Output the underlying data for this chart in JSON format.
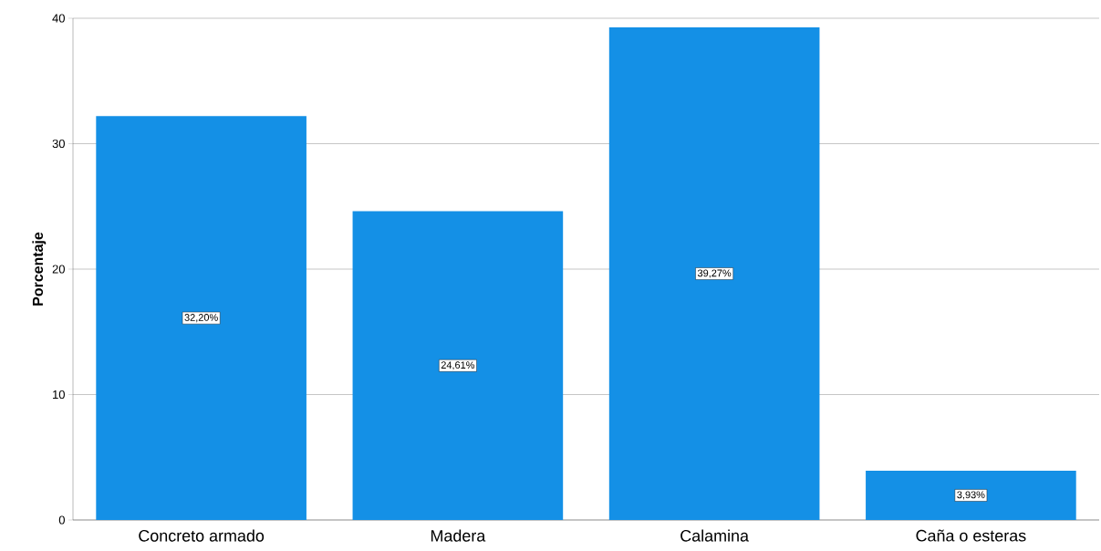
{
  "chart_data": {
    "type": "bar",
    "ylabel": "Porcentaje",
    "categories": [
      "Concreto armado",
      "Madera",
      "Calamina",
      "Caña o esteras"
    ],
    "values": [
      32.2,
      24.61,
      39.27,
      3.93
    ],
    "value_labels": [
      "32,20%",
      "24,61%",
      "39,27%",
      "3,93%"
    ],
    "color": "#1490e6",
    "ylim": [
      0,
      40
    ],
    "yticks": [
      0,
      10,
      20,
      30,
      40
    ],
    "grid": "y"
  }
}
